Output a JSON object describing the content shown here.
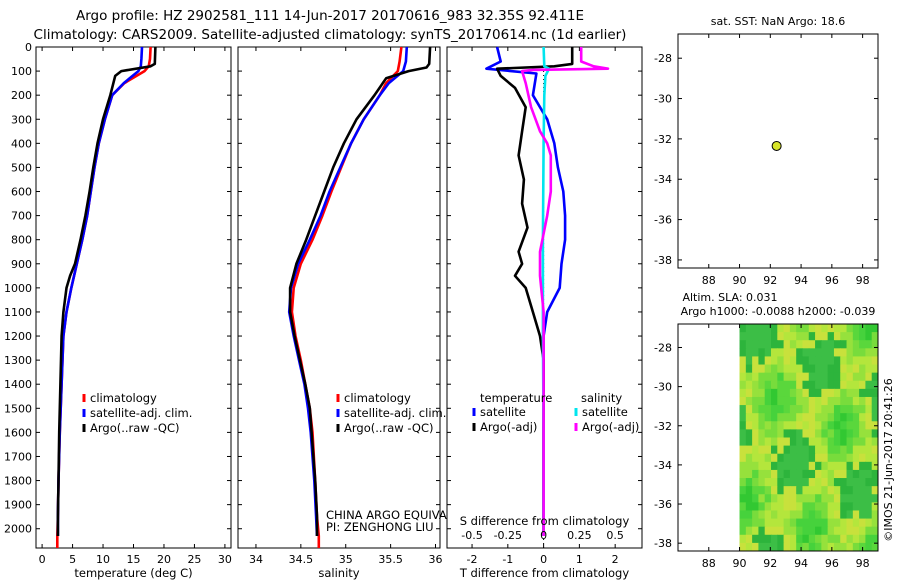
{
  "header": {
    "line1": "Argo profile: HZ 2902581_111 14-Jun-2017 20170616_983 32.35S 92.411E",
    "line2": "Climatology: CARS2009. Satellite-adjusted climatology: synTS_20170614.nc (1d earlier)"
  },
  "colors": {
    "climatology": "#ff0000",
    "satellite": "#0000ff",
    "argo": "#000000",
    "sat_salinity": "#00e5ee",
    "argo_salinity": "#ff00ff",
    "float_marker": "#d7e52a"
  },
  "depth_axis": {
    "ticks": [
      "0",
      "100",
      "200",
      "300",
      "400",
      "500",
      "600",
      "700",
      "800",
      "900",
      "1000",
      "1100",
      "1200",
      "1300",
      "1400",
      "1500",
      "1600",
      "1700",
      "1800",
      "1900",
      "2000"
    ],
    "max": 2080
  },
  "chart_data": [
    {
      "type": "line",
      "name": "temperature-profile",
      "xlabel": "temperature (deg C)",
      "xlim": [
        -1,
        31
      ],
      "xticks": [
        "0",
        "5",
        "10",
        "15",
        "20",
        "25",
        "30"
      ],
      "ylim": [
        0,
        2080
      ],
      "legend": [
        "climatology",
        "satellite-adj. clim.",
        "Argo(..raw -QC)"
      ],
      "series": [
        {
          "name": "climatology",
          "color": "#ff0000",
          "points": [
            [
              17.8,
              0
            ],
            [
              17.7,
              50
            ],
            [
              17.5,
              80
            ],
            [
              16.8,
              100
            ],
            [
              13.5,
              150
            ],
            [
              11.5,
              200
            ],
            [
              10.3,
              300
            ],
            [
              9.3,
              400
            ],
            [
              8.6,
              500
            ],
            [
              8.0,
              600
            ],
            [
              7.4,
              700
            ],
            [
              6.6,
              800
            ],
            [
              5.7,
              900
            ],
            [
              4.8,
              1000
            ],
            [
              4.0,
              1100
            ],
            [
              3.5,
              1200
            ],
            [
              3.2,
              1400
            ],
            [
              2.9,
              1600
            ],
            [
              2.7,
              1800
            ],
            [
              2.6,
              1950
            ],
            [
              2.5,
              2030
            ],
            [
              2.5,
              2080
            ]
          ]
        },
        {
          "name": "satellite",
          "color": "#0000ff",
          "points": [
            [
              16.4,
              0
            ],
            [
              16.3,
              50
            ],
            [
              16.2,
              80
            ],
            [
              15.8,
              100
            ],
            [
              13.4,
              150
            ],
            [
              11.5,
              200
            ],
            [
              10.3,
              300
            ],
            [
              9.3,
              400
            ],
            [
              8.6,
              500
            ],
            [
              8.0,
              600
            ],
            [
              7.4,
              700
            ],
            [
              6.6,
              800
            ],
            [
              5.7,
              900
            ],
            [
              4.8,
              1000
            ],
            [
              4.0,
              1100
            ],
            [
              3.5,
              1200
            ],
            [
              3.2,
              1400
            ],
            [
              2.9,
              1600
            ],
            [
              2.7,
              1800
            ],
            [
              2.6,
              1950
            ],
            [
              2.6,
              2030
            ]
          ]
        },
        {
          "name": "argo",
          "color": "#000000",
          "points": [
            [
              18.6,
              0
            ],
            [
              18.5,
              70
            ],
            [
              17.8,
              80
            ],
            [
              13.0,
              100
            ],
            [
              12.0,
              120
            ],
            [
              11.2,
              200
            ],
            [
              10.0,
              300
            ],
            [
              9.1,
              400
            ],
            [
              8.4,
              500
            ],
            [
              7.8,
              600
            ],
            [
              7.1,
              700
            ],
            [
              6.3,
              800
            ],
            [
              5.4,
              900
            ],
            [
              4.6,
              950
            ],
            [
              4.0,
              1000
            ],
            [
              3.5,
              1100
            ],
            [
              3.2,
              1200
            ],
            [
              3.0,
              1400
            ],
            [
              2.8,
              1600
            ],
            [
              2.7,
              1800
            ],
            [
              2.6,
              1950
            ],
            [
              2.6,
              2030
            ]
          ]
        }
      ]
    },
    {
      "type": "line",
      "name": "salinity-profile",
      "xlabel": "salinity",
      "xlim": [
        33.8,
        36.05
      ],
      "xticks": [
        "34",
        "34.5",
        "35",
        "35.5",
        "36"
      ],
      "ylim": [
        0,
        2080
      ],
      "legend": [
        "climatology",
        "satellite-adj. clim.",
        "Argo(..raw -QC)"
      ],
      "annotation": [
        "CHINA ARGO EQUIVALENT",
        "PI: ZENGHONG LIU"
      ],
      "series": [
        {
          "name": "climatology",
          "color": "#ff0000",
          "points": [
            [
              35.62,
              0
            ],
            [
              35.6,
              60
            ],
            [
              35.58,
              100
            ],
            [
              35.45,
              150
            ],
            [
              35.38,
              200
            ],
            [
              35.2,
              300
            ],
            [
              35.06,
              400
            ],
            [
              34.95,
              500
            ],
            [
              34.84,
              600
            ],
            [
              34.74,
              700
            ],
            [
              34.63,
              800
            ],
            [
              34.5,
              900
            ],
            [
              34.42,
              1000
            ],
            [
              34.4,
              1100
            ],
            [
              34.44,
              1200
            ],
            [
              34.5,
              1300
            ],
            [
              34.55,
              1400
            ],
            [
              34.6,
              1500
            ],
            [
              34.63,
              1600
            ],
            [
              34.66,
              1800
            ],
            [
              34.68,
              1950
            ],
            [
              34.7,
              2030
            ],
            [
              34.7,
              2080
            ]
          ]
        },
        {
          "name": "satellite",
          "color": "#0000ff",
          "points": [
            [
              35.68,
              0
            ],
            [
              35.67,
              60
            ],
            [
              35.64,
              100
            ],
            [
              35.48,
              150
            ],
            [
              35.38,
              200
            ],
            [
              35.2,
              300
            ],
            [
              35.06,
              400
            ],
            [
              34.94,
              500
            ],
            [
              34.82,
              600
            ],
            [
              34.72,
              700
            ],
            [
              34.6,
              800
            ],
            [
              34.47,
              900
            ],
            [
              34.39,
              1000
            ],
            [
              34.37,
              1100
            ],
            [
              34.42,
              1200
            ],
            [
              34.48,
              1300
            ],
            [
              34.54,
              1400
            ],
            [
              34.58,
              1500
            ],
            [
              34.61,
              1600
            ],
            [
              34.65,
              1800
            ],
            [
              34.67,
              1950
            ],
            [
              34.68,
              2030
            ]
          ]
        },
        {
          "name": "argo",
          "color": "#000000",
          "points": [
            [
              35.94,
              0
            ],
            [
              35.93,
              70
            ],
            [
              35.9,
              85
            ],
            [
              35.7,
              100
            ],
            [
              35.45,
              130
            ],
            [
              35.32,
              200
            ],
            [
              35.12,
              300
            ],
            [
              34.98,
              400
            ],
            [
              34.86,
              500
            ],
            [
              34.76,
              600
            ],
            [
              34.66,
              700
            ],
            [
              34.56,
              800
            ],
            [
              34.45,
              900
            ],
            [
              34.38,
              1000
            ],
            [
              34.38,
              1100
            ],
            [
              34.43,
              1200
            ],
            [
              34.49,
              1300
            ],
            [
              34.55,
              1400
            ],
            [
              34.6,
              1500
            ],
            [
              34.62,
              1600
            ],
            [
              34.66,
              1800
            ],
            [
              34.68,
              1950
            ],
            [
              34.68,
              2030
            ]
          ]
        }
      ]
    },
    {
      "type": "line",
      "name": "difference-profile",
      "xlabel": "T difference from climatology",
      "x2label": "S difference from climatology",
      "xlim": [
        -2.7,
        2.75
      ],
      "xticks": [
        "-2",
        "-1",
        "0",
        "1",
        "2"
      ],
      "x2lim": [
        -0.675,
        0.6875
      ],
      "x2ticks": [
        "-0.5",
        "-0.25",
        "0",
        "0.25",
        "0.5"
      ],
      "ylim": [
        0,
        2080
      ],
      "legend_t": {
        "header": "temperature",
        "satellite": "satellite",
        "argo": "Argo(-adj)"
      },
      "legend_s": {
        "header": "salinity",
        "satellite": "satellite",
        "argo": "Argo(-adj)"
      },
      "series": [
        {
          "name": "T satellite",
          "color": "#0000ff",
          "points": [
            [
              -1.3,
              0
            ],
            [
              -1.2,
              60
            ],
            [
              -1.6,
              90
            ],
            [
              -0.2,
              110
            ],
            [
              -0.3,
              200
            ],
            [
              0.1,
              300
            ],
            [
              0.3,
              400
            ],
            [
              0.4,
              500
            ],
            [
              0.55,
              600
            ],
            [
              0.6,
              700
            ],
            [
              0.6,
              800
            ],
            [
              0.5,
              900
            ],
            [
              0.45,
              1000
            ],
            [
              0.1,
              1100
            ],
            [
              0.0,
              1200
            ],
            [
              0.0,
              1400
            ],
            [
              0.0,
              2030
            ]
          ]
        },
        {
          "name": "T argo",
          "color": "#000000",
          "points": [
            [
              0.8,
              0
            ],
            [
              0.8,
              70
            ],
            [
              0.3,
              80
            ],
            [
              -1.3,
              90
            ],
            [
              -1.2,
              120
            ],
            [
              -0.8,
              170
            ],
            [
              -0.5,
              250
            ],
            [
              -0.6,
              350
            ],
            [
              -0.7,
              450
            ],
            [
              -0.55,
              550
            ],
            [
              -0.6,
              650
            ],
            [
              -0.45,
              750
            ],
            [
              -0.7,
              850
            ],
            [
              -0.6,
              900
            ],
            [
              -0.8,
              950
            ],
            [
              -0.5,
              1000
            ],
            [
              -0.3,
              1100
            ],
            [
              -0.1,
              1200
            ],
            [
              0.0,
              1300
            ],
            [
              0.0,
              2030
            ]
          ]
        },
        {
          "name": "S satellite",
          "color": "#00e5ee",
          "points": [
            [
              0.0,
              0
            ],
            [
              0.02,
              80
            ],
            [
              0.15,
              90
            ],
            [
              0.05,
              120
            ],
            [
              0.02,
              200
            ],
            [
              0.0,
              400
            ],
            [
              -0.02,
              800
            ],
            [
              -0.02,
              1200
            ],
            [
              0.0,
              1600
            ],
            [
              0.0,
              2030
            ]
          ]
        },
        {
          "name": "S argo",
          "color": "#ff00ff",
          "points": [
            [
              1.05,
              0
            ],
            [
              1.05,
              60
            ],
            [
              1.4,
              80
            ],
            [
              1.8,
              90
            ],
            [
              -0.3,
              95
            ],
            [
              -0.6,
              100
            ],
            [
              -0.5,
              150
            ],
            [
              -0.35,
              250
            ],
            [
              -0.1,
              350
            ],
            [
              0.1,
              400
            ],
            [
              0.2,
              450
            ],
            [
              0.2,
              600
            ],
            [
              0.1,
              700
            ],
            [
              -0.1,
              850
            ],
            [
              -0.1,
              950
            ],
            [
              0.0,
              1100
            ],
            [
              0.0,
              2030
            ]
          ]
        }
      ]
    },
    {
      "type": "scatter",
      "name": "location-map",
      "title": "sat. SST: NaN Argo: 18.6",
      "xlim": [
        86,
        99
      ],
      "xticks": [
        "88",
        "90",
        "92",
        "94",
        "96",
        "98"
      ],
      "ylim": [
        -38.4,
        -26.8
      ],
      "yticks": [
        "-28",
        "-30",
        "-32",
        "-34",
        "-36",
        "-38"
      ],
      "points": [
        [
          92.411,
          -32.35
        ]
      ]
    },
    {
      "type": "heatmap",
      "name": "sla-map",
      "title1": "Altim. SLA: 0.031",
      "title2": "Argo h1000: -0.0088 h2000: -0.039",
      "xlim": [
        86,
        99
      ],
      "xticks": [
        "88",
        "90",
        "92",
        "94",
        "96",
        "98"
      ],
      "ylim": [
        -38.4,
        -26.8
      ],
      "yticks": [
        "-28",
        "-30",
        "-32",
        "-34",
        "-36",
        "-38"
      ],
      "data_lon_range": [
        90,
        99
      ]
    }
  ],
  "credit": "©IMOS 21-Jun-2017 20:41:26"
}
